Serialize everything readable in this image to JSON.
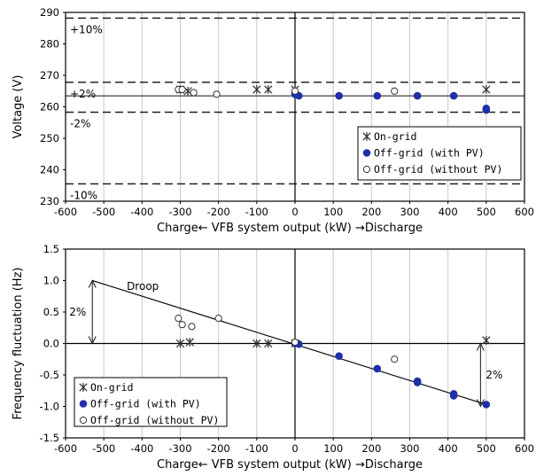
{
  "chart_data": [
    {
      "type": "scatter",
      "xlabel": "Charge←  VFB system output (kW) →Discharge",
      "ylabel": "Voltage (V)",
      "xlim": [
        -600,
        600
      ],
      "ylim": [
        230,
        290
      ],
      "xticks": [
        -600,
        -500,
        -400,
        -300,
        -200,
        -100,
        0,
        100,
        200,
        300,
        400,
        500,
        600
      ],
      "yticks": [
        230,
        240,
        250,
        260,
        270,
        280,
        290
      ],
      "grid": "vertical",
      "legend_position": "bottom-right",
      "series": [
        {
          "name": "On-grid",
          "marker": "asterisk",
          "color": "#333333",
          "points": [
            [
              -300,
              265.5
            ],
            [
              -280,
              265.0
            ],
            [
              -100,
              265.5
            ],
            [
              -70,
              265.5
            ],
            [
              0,
              265.5
            ],
            [
              500,
              265.5
            ]
          ]
        },
        {
          "name": "Off-grid (with PV)",
          "marker": "filled-circle",
          "color": "#1f2fa8",
          "points": [
            [
              0,
              264.0
            ],
            [
              10,
              263.5
            ],
            [
              115,
              263.5
            ],
            [
              215,
              263.5
            ],
            [
              320,
              263.5
            ],
            [
              415,
              263.5
            ],
            [
              500,
              259.5
            ],
            [
              500,
              259.0
            ]
          ]
        },
        {
          "name": "Off-grid (without PV)",
          "marker": "open-circle",
          "color": "#333333",
          "points": [
            [
              -305,
              265.5
            ],
            [
              -295,
              265.5
            ],
            [
              -265,
              264.5
            ],
            [
              -205,
              264.0
            ],
            [
              0,
              265.0
            ],
            [
              260,
              265.0
            ]
          ]
        }
      ],
      "reference_lines": [
        {
          "y": 288.2,
          "style": "dashed",
          "label": "+10%"
        },
        {
          "y": 267.8,
          "style": "dashed",
          "label": "+2%"
        },
        {
          "y": 263.5,
          "style": "solid",
          "label": ""
        },
        {
          "y": 258.3,
          "style": "dashed",
          "label": "-2%"
        },
        {
          "y": 235.5,
          "style": "dashed",
          "label": "-10%"
        }
      ]
    },
    {
      "type": "scatter",
      "xlabel": "Charge←  VFB system output (kW) →Discharge",
      "ylabel": "Frequency fluctuation (Hz)",
      "xlim": [
        -600,
        600
      ],
      "ylim": [
        -1.5,
        1.5
      ],
      "xticks": [
        -600,
        -500,
        -400,
        -300,
        -200,
        -100,
        0,
        100,
        200,
        300,
        400,
        500,
        600
      ],
      "yticks": [
        -1.5,
        -1.0,
        -0.5,
        0.0,
        0.5,
        1.0,
        1.5
      ],
      "grid": "vertical",
      "legend_position": "bottom-left",
      "series": [
        {
          "name": "On-grid",
          "marker": "asterisk",
          "color": "#333333",
          "points": [
            [
              -300,
              0.0
            ],
            [
              -275,
              0.02
            ],
            [
              -100,
              0.0
            ],
            [
              -70,
              0.0
            ],
            [
              0,
              0.0
            ],
            [
              500,
              0.05
            ]
          ]
        },
        {
          "name": "Off-grid (with PV)",
          "marker": "filled-circle",
          "color": "#1f2fa8",
          "points": [
            [
              0,
              0.0
            ],
            [
              10,
              -0.01
            ],
            [
              115,
              -0.2
            ],
            [
              215,
              -0.4
            ],
            [
              320,
              -0.6
            ],
            [
              320,
              -0.62
            ],
            [
              415,
              -0.8
            ],
            [
              415,
              -0.83
            ],
            [
              500,
              -0.97
            ]
          ]
        },
        {
          "name": "Off-grid (without PV)",
          "marker": "open-circle",
          "color": "#333333",
          "points": [
            [
              -305,
              0.4
            ],
            [
              -295,
              0.3
            ],
            [
              -270,
              0.27
            ],
            [
              -200,
              0.4
            ],
            [
              0,
              0.02
            ],
            [
              260,
              -0.25
            ]
          ]
        }
      ],
      "droop_line": {
        "from": [
          -530,
          1.0
        ],
        "to": [
          500,
          -0.97
        ],
        "label": "Droop"
      },
      "annotations": [
        {
          "text": "2%",
          "arrow": {
            "x": -530,
            "from": 1.0,
            "to": 0.0
          }
        },
        {
          "text": "2%",
          "arrow": {
            "x": 485,
            "from": 0.0,
            "to": -1.0
          }
        }
      ]
    }
  ]
}
